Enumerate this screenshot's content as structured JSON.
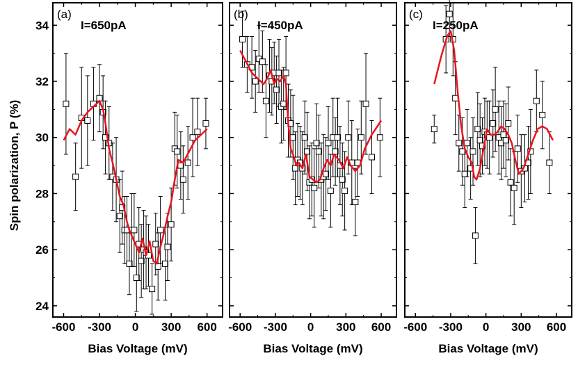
{
  "figure": {
    "ylabel": "Spin polarization, P (%)",
    "ylim": [
      23.6,
      34.8
    ],
    "yticks": [
      "24",
      "26",
      "28",
      "30",
      "32",
      "34"
    ],
    "colors": {
      "fit_line": "#e8141e",
      "marker": "#000000",
      "frame": "#000000"
    }
  },
  "chart_data": [
    {
      "type": "scatter",
      "panel_label": "(a)",
      "annotation": "I=650pA",
      "xlabel": "Bias Voltage (mV)",
      "xlim": [
        -690,
        730
      ],
      "xticks": [
        "-600",
        "-300",
        "0",
        "300",
        "600"
      ],
      "series": [
        {
          "kind": "points_with_error_bars",
          "x": [
            -580,
            -500,
            -450,
            -400,
            -350,
            -300,
            -270,
            -250,
            -220,
            -190,
            -160,
            -130,
            -110,
            -90,
            -70,
            -50,
            -30,
            -10,
            10,
            30,
            50,
            70,
            90,
            110,
            140,
            170,
            190,
            210,
            250,
            270,
            300,
            330,
            350,
            380,
            400,
            440,
            480,
            520,
            590
          ],
          "y": [
            31.2,
            28.6,
            30.7,
            30.6,
            31.2,
            31.4,
            30.9,
            30.0,
            29.8,
            28.6,
            28.5,
            27.2,
            27.5,
            26.7,
            26.7,
            25.5,
            26.7,
            26.7,
            25.0,
            26.2,
            25.6,
            26.0,
            25.9,
            25.8,
            24.6,
            26.2,
            25.4,
            26.7,
            25.5,
            26.1,
            26.9,
            29.6,
            29.5,
            29.0,
            28.5,
            29.1,
            30.0,
            30.2,
            30.5
          ],
          "err": [
            1.8,
            1.2,
            1.8,
            1.6,
            1.3,
            1.2,
            1.3,
            1.3,
            1.3,
            1.2,
            1.5,
            1.3,
            1.3,
            1.2,
            1.2,
            1.1,
            1.3,
            1.3,
            1.2,
            1.3,
            1.3,
            1.4,
            1.3,
            1.1,
            0.9,
            1.1,
            1.2,
            1.2,
            1.3,
            1.2,
            1.3,
            1.3,
            1.3,
            1.2,
            1.2,
            1.3,
            1.4,
            1.2,
            0.9
          ]
        },
        {
          "kind": "line",
          "x": [
            -600,
            -550,
            -500,
            -450,
            -400,
            -350,
            -300,
            -270,
            -250,
            -220,
            -190,
            -160,
            -130,
            -100,
            -70,
            -50,
            -30,
            0,
            30,
            60,
            90,
            120,
            150,
            180,
            210,
            240,
            270,
            300,
            330,
            360,
            400,
            450,
            500,
            600
          ],
          "y": [
            29.9,
            30.3,
            30.1,
            30.6,
            30.9,
            31.1,
            31.3,
            31.0,
            30.5,
            29.6,
            29.1,
            28.5,
            27.9,
            27.6,
            27.0,
            26.7,
            26.5,
            26.2,
            25.9,
            26.4,
            25.8,
            26.3,
            25.6,
            25.5,
            26.1,
            26.6,
            27.2,
            27.7,
            28.5,
            29.2,
            29.1,
            29.5,
            29.9,
            30.3
          ]
        }
      ]
    },
    {
      "type": "scatter",
      "panel_label": "(b)",
      "annotation": "I=450pA",
      "xlabel": "Bias Voltage (mV)",
      "xlim": [
        -690,
        730
      ],
      "xticks": [
        "-600",
        "-300",
        "0",
        "300",
        "600"
      ],
      "series": [
        {
          "kind": "points_with_error_bars",
          "x": [
            -580,
            -540,
            -500,
            -470,
            -440,
            -410,
            -380,
            -350,
            -330,
            -310,
            -290,
            -270,
            -250,
            -230,
            -210,
            -190,
            -170,
            -150,
            -130,
            -110,
            -90,
            -70,
            -50,
            -30,
            -10,
            10,
            30,
            50,
            70,
            90,
            110,
            130,
            150,
            170,
            190,
            210,
            230,
            250,
            270,
            290,
            320,
            350,
            380,
            400,
            430,
            470,
            520,
            590
          ],
          "y": [
            33.5,
            32.6,
            32.5,
            32.0,
            32.8,
            32.7,
            31.3,
            32.2,
            32.0,
            32.3,
            31.7,
            32.3,
            31.1,
            31.2,
            32.3,
            30.6,
            30.5,
            30.0,
            28.9,
            29.2,
            29.1,
            28.9,
            30.0,
            29.5,
            28.4,
            28.5,
            28.2,
            29.8,
            29.5,
            28.5,
            28.6,
            28.7,
            29.8,
            28.1,
            30.0,
            29.5,
            30.0,
            29.0,
            28.5,
            28.1,
            30.0,
            29.1,
            27.7,
            29.1,
            30.0,
            31.2,
            29.3,
            30.0
          ],
          "err": [
            1.0,
            1.0,
            1.1,
            1.1,
            1.2,
            1.1,
            1.3,
            1.3,
            1.2,
            1.1,
            1.2,
            1.2,
            1.3,
            1.3,
            1.3,
            1.3,
            1.2,
            1.5,
            1.3,
            1.3,
            1.3,
            1.3,
            1.3,
            1.4,
            1.3,
            1.3,
            1.4,
            1.4,
            1.3,
            1.3,
            1.5,
            1.3,
            1.3,
            1.3,
            1.4,
            1.2,
            1.4,
            1.4,
            1.3,
            1.4,
            1.3,
            1.5,
            1.2,
            1.2,
            1.3,
            1.8,
            1.3,
            1.4
          ]
        },
        {
          "kind": "line",
          "x": [
            -600,
            -550,
            -500,
            -450,
            -400,
            -370,
            -340,
            -310,
            -290,
            -260,
            -230,
            -210,
            -190,
            -170,
            -150,
            -120,
            -100,
            -70,
            -40,
            -10,
            20,
            50,
            80,
            110,
            140,
            170,
            200,
            240,
            280,
            310,
            340,
            380,
            420,
            460,
            520,
            600
          ],
          "y": [
            33.1,
            32.7,
            32.3,
            32.1,
            31.9,
            32.1,
            32.4,
            31.9,
            32.1,
            32.0,
            32.2,
            31.9,
            30.5,
            29.6,
            29.4,
            29.0,
            29.1,
            28.9,
            29.4,
            28.6,
            28.5,
            28.4,
            28.5,
            28.9,
            29.2,
            29.0,
            29.4,
            29.2,
            28.9,
            29.3,
            29.0,
            28.8,
            29.0,
            29.6,
            30.1,
            30.6
          ]
        }
      ]
    },
    {
      "type": "scatter",
      "panel_label": "(c)",
      "annotation": "I=250pA",
      "xlabel": "Bias Voltage (mV)",
      "xlim": [
        -690,
        730
      ],
      "xticks": [
        "-600",
        "-300",
        "0",
        "300",
        "600"
      ],
      "series": [
        {
          "kind": "points_with_error_bars",
          "x": [
            -440,
            -340,
            -310,
            -280,
            -260,
            -230,
            -200,
            -180,
            -160,
            -130,
            -110,
            -90,
            -70,
            -50,
            -30,
            -10,
            10,
            30,
            60,
            80,
            110,
            130,
            150,
            170,
            190,
            210,
            240,
            270,
            300,
            330,
            360,
            380,
            430,
            480,
            540
          ],
          "y": [
            30.3,
            33.5,
            34.4,
            33.5,
            31.4,
            29.8,
            29.5,
            28.7,
            29.8,
            28.9,
            29.5,
            26.5,
            30.3,
            29.9,
            29.7,
            30.2,
            30.1,
            30.0,
            30.5,
            31.0,
            30.0,
            29.8,
            30.1,
            29.9,
            30.5,
            28.4,
            28.2,
            29.6,
            28.8,
            28.9,
            29.1,
            29.5,
            31.3,
            30.8,
            29.1
          ],
          "err": [
            0.5,
            1.2,
            0.8,
            1.3,
            1.3,
            1.0,
            1.2,
            1.2,
            1.2,
            1.1,
            1.2,
            1.0,
            1.3,
            1.3,
            1.0,
            1.2,
            1.2,
            1.3,
            1.2,
            1.5,
            1.3,
            1.3,
            1.2,
            1.3,
            1.3,
            1.2,
            1.3,
            1.2,
            1.3,
            1.2,
            1.3,
            1.5,
            1.1,
            1.2,
            1.1
          ]
        },
        {
          "kind": "line",
          "x": [
            -440,
            -380,
            -330,
            -300,
            -270,
            -240,
            -210,
            -180,
            -150,
            -120,
            -100,
            -80,
            -50,
            -20,
            10,
            40,
            70,
            100,
            130,
            160,
            190,
            220,
            250,
            280,
            320,
            360,
            400,
            440,
            480,
            520,
            570
          ],
          "y": [
            31.9,
            32.9,
            33.6,
            33.8,
            33.1,
            31.6,
            30.4,
            29.6,
            29.3,
            29.1,
            28.6,
            28.5,
            28.9,
            29.6,
            30.3,
            30.1,
            30.1,
            30.2,
            30.4,
            30.3,
            30.1,
            29.8,
            29.2,
            28.7,
            28.9,
            29.4,
            29.9,
            30.3,
            30.4,
            30.3,
            29.9
          ]
        }
      ]
    }
  ]
}
